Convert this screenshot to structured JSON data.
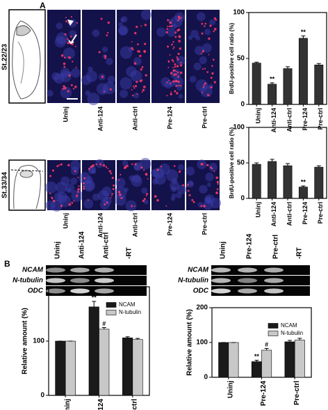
{
  "panel_labels": [
    "A",
    "B"
  ],
  "stage_labels": [
    "St.22/23",
    "St.33/34"
  ],
  "image_labels": [
    "Uninj",
    "Anti-124",
    "Anti-ctrl",
    "Pre-124",
    "Pre-ctrl"
  ],
  "gels": [
    {
      "lanes": [
        "Uninj",
        "Anti-124",
        "Anti-ctrl",
        "-RT"
      ],
      "genes": [
        "NCAM",
        "N-tubulin",
        "ODC"
      ]
    },
    {
      "lanes": [
        "Uninj",
        "Pre-124",
        "Pre-ctrl",
        "-RT"
      ],
      "genes": [
        "NCAM",
        "N-tubulin",
        "ODC"
      ]
    }
  ],
  "chart_data": [
    {
      "type": "bar",
      "ylabel": "BrdU-positive cell ratio (%)",
      "categories": [
        "Uninj",
        "Anti-124",
        "Anti-ctrl",
        "Pre-124",
        "Pre-ctrl"
      ],
      "values": [
        45,
        22,
        39,
        72,
        43
      ],
      "errors": [
        1,
        1.5,
        2,
        2.5,
        1.5
      ],
      "significance": [
        null,
        "**",
        null,
        "**",
        null
      ],
      "color": "#333333",
      "ylim": [
        0,
        100
      ],
      "yticks": [
        0,
        50,
        100
      ]
    },
    {
      "type": "bar",
      "ylabel": "BrdU-positive cell ratio (%)",
      "categories": [
        "Uninj",
        "Anti-124",
        "Anti-ctrl",
        "Pre-124",
        "Pre-ctrl"
      ],
      "values": [
        48,
        52,
        46,
        16,
        44
      ],
      "errors": [
        2,
        3,
        3,
        1.5,
        2
      ],
      "significance": [
        null,
        null,
        null,
        "**",
        null
      ],
      "color": "#333333",
      "ylim": [
        0,
        100
      ],
      "yticks": [
        0,
        50,
        100
      ]
    },
    {
      "type": "grouped_bar",
      "ylabel": "Relative amount (%)",
      "categories": [
        "Uninj",
        "Anti-124",
        "Anti-ctrl"
      ],
      "series": [
        {
          "name": "NCAM",
          "color": "#1a1a1a",
          "values": [
            100,
            163,
            106
          ],
          "errors": [
            0,
            10,
            2
          ],
          "significance": [
            null,
            "**",
            null
          ]
        },
        {
          "name": "N-tubulin",
          "color": "#c8c8c8",
          "values": [
            100,
            122,
            103
          ],
          "errors": [
            0,
            3,
            2
          ],
          "significance": [
            null,
            "#",
            null
          ]
        }
      ],
      "ylim": [
        0,
        200
      ],
      "yticks": [
        0,
        100
      ],
      "legend": "upper right"
    },
    {
      "type": "grouped_bar",
      "ylabel": "Relative amount (%)",
      "categories": [
        "Uninj",
        "Pre-124",
        "Pre-ctrl"
      ],
      "series": [
        {
          "name": "NCAM",
          "color": "#1a1a1a",
          "values": [
            100,
            45,
            102
          ],
          "errors": [
            0,
            4,
            4
          ],
          "significance": [
            null,
            "**",
            null
          ]
        },
        {
          "name": "N-tubulin",
          "color": "#c8c8c8",
          "values": [
            100,
            78,
            107
          ],
          "errors": [
            0,
            5,
            5
          ],
          "significance": [
            null,
            "#",
            null
          ]
        }
      ],
      "ylim": [
        0,
        200
      ],
      "yticks": [
        0,
        100,
        200
      ],
      "legend": "upper right"
    }
  ]
}
